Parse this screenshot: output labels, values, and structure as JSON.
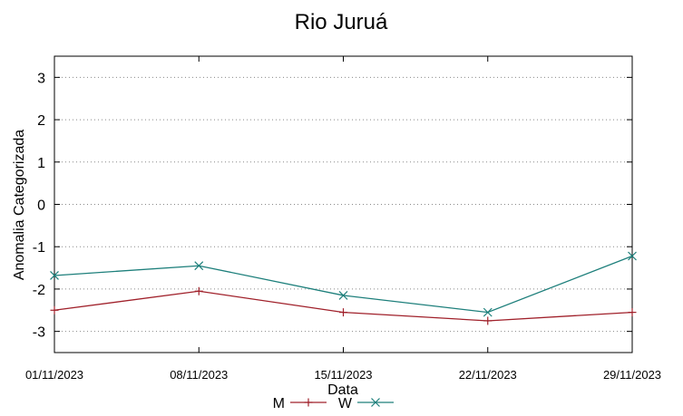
{
  "chart_data": {
    "type": "line",
    "title": "Rio Juruá",
    "xlabel": "Data",
    "ylabel": "Anomalia Categorizada",
    "categories": [
      "01/11/2023",
      "08/11/2023",
      "15/11/2023",
      "22/11/2023",
      "29/11/2023"
    ],
    "ylim": [
      -3.5,
      3.5
    ],
    "yticks": [
      3,
      2,
      1,
      0,
      -1,
      -2,
      -3
    ],
    "grid": "horizontal dotted",
    "legend_position": "bottom-center",
    "series": [
      {
        "name": "M",
        "values": [
          -2.5,
          -2.05,
          -2.55,
          -2.75,
          -2.55
        ],
        "color": "#a0202a",
        "marker": "plus"
      },
      {
        "name": "W",
        "values": [
          -1.68,
          -1.45,
          -2.15,
          -2.55,
          -1.22
        ],
        "color": "#1d7f7b",
        "marker": "cross"
      }
    ]
  }
}
